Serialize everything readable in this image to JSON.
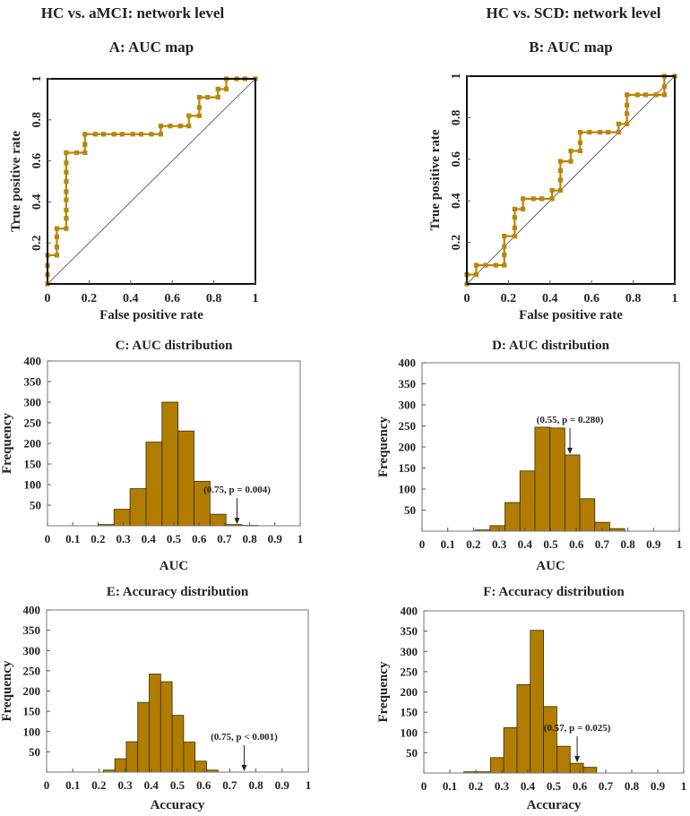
{
  "headers": [
    "HC vs. aMCI: network level",
    "HC vs. SCD: network level"
  ],
  "colors": {
    "bar": "#B07D00",
    "bar_edge": "#3a2a00",
    "roc": "#B8860B",
    "axis": "#333333"
  },
  "chart_data": [
    {
      "id": "A",
      "type": "line",
      "title": "A: AUC map",
      "xlabel": "False positive rate",
      "ylabel": "True positive rate",
      "xlim": [
        0,
        1
      ],
      "ylim": [
        0,
        1
      ],
      "xticks": [
        "0",
        "0.2",
        "0.4",
        "0.6",
        "0.8",
        "1"
      ],
      "yticks": [
        "0.2",
        "0.4",
        "0.6",
        "0.8",
        "1"
      ],
      "diagonal": true,
      "points": [
        [
          0,
          0
        ],
        [
          0,
          0.045
        ],
        [
          0,
          0.09
        ],
        [
          0,
          0.14
        ],
        [
          0.045,
          0.14
        ],
        [
          0.045,
          0.18
        ],
        [
          0.045,
          0.23
        ],
        [
          0.045,
          0.27
        ],
        [
          0.09,
          0.27
        ],
        [
          0.09,
          0.32
        ],
        [
          0.09,
          0.36
        ],
        [
          0.09,
          0.41
        ],
        [
          0.09,
          0.45
        ],
        [
          0.09,
          0.5
        ],
        [
          0.09,
          0.545
        ],
        [
          0.09,
          0.59
        ],
        [
          0.09,
          0.64
        ],
        [
          0.14,
          0.64
        ],
        [
          0.18,
          0.64
        ],
        [
          0.18,
          0.68
        ],
        [
          0.18,
          0.73
        ],
        [
          0.23,
          0.73
        ],
        [
          0.27,
          0.73
        ],
        [
          0.32,
          0.73
        ],
        [
          0.36,
          0.73
        ],
        [
          0.41,
          0.73
        ],
        [
          0.45,
          0.73
        ],
        [
          0.5,
          0.73
        ],
        [
          0.545,
          0.73
        ],
        [
          0.545,
          0.77
        ],
        [
          0.59,
          0.77
        ],
        [
          0.64,
          0.77
        ],
        [
          0.68,
          0.77
        ],
        [
          0.68,
          0.82
        ],
        [
          0.73,
          0.82
        ],
        [
          0.73,
          0.86
        ],
        [
          0.73,
          0.91
        ],
        [
          0.77,
          0.91
        ],
        [
          0.82,
          0.91
        ],
        [
          0.82,
          0.95
        ],
        [
          0.86,
          0.95
        ],
        [
          0.86,
          1
        ],
        [
          0.91,
          1
        ],
        [
          0.95,
          1
        ],
        [
          1,
          1
        ]
      ]
    },
    {
      "id": "B",
      "type": "line",
      "title": "B: AUC map",
      "xlabel": "False positive rate",
      "ylabel": "True positive rate",
      "xlim": [
        0,
        1
      ],
      "ylim": [
        0,
        1
      ],
      "xticks": [
        "0",
        "0.2",
        "0.4",
        "0.6",
        "0.8",
        "1"
      ],
      "yticks": [
        "0.2",
        "0.4",
        "0.6",
        "0.8",
        "1"
      ],
      "diagonal": true,
      "points": [
        [
          0,
          0
        ],
        [
          0,
          0.045
        ],
        [
          0.045,
          0.045
        ],
        [
          0.045,
          0.09
        ],
        [
          0.09,
          0.09
        ],
        [
          0.14,
          0.09
        ],
        [
          0.18,
          0.09
        ],
        [
          0.18,
          0.14
        ],
        [
          0.18,
          0.18
        ],
        [
          0.18,
          0.23
        ],
        [
          0.23,
          0.23
        ],
        [
          0.23,
          0.27
        ],
        [
          0.23,
          0.32
        ],
        [
          0.23,
          0.36
        ],
        [
          0.27,
          0.36
        ],
        [
          0.27,
          0.41
        ],
        [
          0.32,
          0.41
        ],
        [
          0.36,
          0.41
        ],
        [
          0.41,
          0.41
        ],
        [
          0.41,
          0.45
        ],
        [
          0.45,
          0.45
        ],
        [
          0.45,
          0.5
        ],
        [
          0.45,
          0.545
        ],
        [
          0.45,
          0.59
        ],
        [
          0.5,
          0.59
        ],
        [
          0.5,
          0.64
        ],
        [
          0.545,
          0.64
        ],
        [
          0.545,
          0.68
        ],
        [
          0.545,
          0.73
        ],
        [
          0.59,
          0.73
        ],
        [
          0.64,
          0.73
        ],
        [
          0.68,
          0.73
        ],
        [
          0.73,
          0.73
        ],
        [
          0.73,
          0.77
        ],
        [
          0.77,
          0.77
        ],
        [
          0.77,
          0.82
        ],
        [
          0.77,
          0.86
        ],
        [
          0.77,
          0.91
        ],
        [
          0.82,
          0.91
        ],
        [
          0.86,
          0.91
        ],
        [
          0.91,
          0.91
        ],
        [
          0.95,
          0.91
        ],
        [
          0.95,
          0.95
        ],
        [
          0.95,
          1
        ],
        [
          1,
          1
        ]
      ]
    },
    {
      "id": "C",
      "type": "bar",
      "title": "C: AUC distribution",
      "xlabel": "AUC",
      "ylabel": "Frequency",
      "xlim": [
        0,
        1
      ],
      "ylim": [
        0,
        400
      ],
      "xticks": [
        "0",
        "0.1",
        "0.2",
        "0.3",
        "0.4",
        "0.5",
        "0.6",
        "0.7",
        "0.8",
        "0.9",
        "1"
      ],
      "yticks": [
        "50",
        "100",
        "150",
        "200",
        "250",
        "300",
        "350",
        "400"
      ],
      "bin_start": 0.2,
      "bin_width": 0.0633,
      "values": [
        3,
        40,
        90,
        203,
        300,
        230,
        108,
        28,
        3,
        1
      ],
      "annotation": {
        "text": "(0.75, p = 0.004)",
        "x": 0.75,
        "y": 2
      }
    },
    {
      "id": "D",
      "type": "bar",
      "title": "D: AUC distribution",
      "xlabel": "AUC",
      "ylabel": "Frequency",
      "xlim": [
        0,
        1
      ],
      "ylim": [
        0,
        400
      ],
      "xticks": [
        "0",
        "0.1",
        "0.2",
        "0.3",
        "0.4",
        "0.5",
        "0.6",
        "0.7",
        "0.8",
        "0.9",
        "1"
      ],
      "yticks": [
        "50",
        "100",
        "150",
        "200",
        "250",
        "300",
        "350",
        "400"
      ],
      "bin_start": 0.206,
      "bin_width": 0.0582,
      "values": [
        3,
        13,
        68,
        143,
        247,
        245,
        181,
        77,
        21,
        6
      ],
      "annotation": {
        "text": "(0.55, p = 0.280)",
        "x": 0.575,
        "y": 181
      }
    },
    {
      "id": "E",
      "type": "bar",
      "title": "E: Accuracy distribution",
      "xlabel": "Accuracy",
      "ylabel": "Frequency",
      "xlim": [
        0,
        1
      ],
      "ylim": [
        0,
        400
      ],
      "xticks": [
        "0",
        "0.1",
        "0.2",
        "0.3",
        "0.4",
        "0.5",
        "0.6",
        "0.7",
        "0.8",
        "0.9",
        "1"
      ],
      "yticks": [
        "50",
        "100",
        "150",
        "200",
        "250",
        "300",
        "350",
        "400"
      ],
      "bin_start": 0.217,
      "bin_width": 0.0438,
      "values": [
        5,
        33,
        75,
        172,
        242,
        223,
        140,
        74,
        27,
        5
      ],
      "annotation": {
        "text": "(0.75, p < 0.001)",
        "x": 0.755,
        "y": 0
      }
    },
    {
      "id": "F",
      "type": "bar",
      "title": "F: Accuracy distribution",
      "xlabel": "Accuracy",
      "ylabel": "Frequency",
      "xlim": [
        0,
        1
      ],
      "ylim": [
        0,
        400
      ],
      "xticks": [
        "0",
        "0.1",
        "0.2",
        "0.3",
        "0.4",
        "0.5",
        "0.6",
        "0.7",
        "0.8",
        "0.9",
        "1"
      ],
      "yticks": [
        "50",
        "100",
        "150",
        "200",
        "250",
        "300",
        "350",
        "400"
      ],
      "bin_start": 0.154,
      "bin_width": 0.0511,
      "values": [
        3,
        3,
        38,
        112,
        218,
        352,
        164,
        66,
        24,
        14
      ],
      "annotation": {
        "text": "(0.57, p = 0.025)",
        "x": 0.59,
        "y": 24
      }
    }
  ]
}
